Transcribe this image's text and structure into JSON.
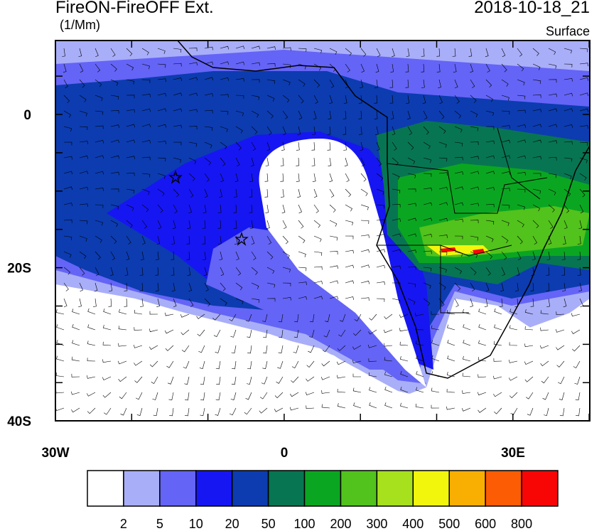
{
  "header": {
    "title": "FireON-FireOFF Ext.",
    "units": "(1/Mm)",
    "datetime": "2018-10-18_21",
    "level": "Surface"
  },
  "axes": {
    "x_labels": [
      "30W",
      "0",
      "30E"
    ],
    "y_labels": [
      "0",
      "20S",
      "40S"
    ]
  },
  "colorbar": {
    "colors": [
      "#ffffff",
      "#a9aef8",
      "#6464f6",
      "#1616f2",
      "#0c3cb0",
      "#077552",
      "#0ba621",
      "#52c21c",
      "#a7e01c",
      "#f2f60c",
      "#f9ae02",
      "#fb5c04",
      "#f80606"
    ],
    "labels": [
      "2",
      "5",
      "10",
      "20",
      "50",
      "100",
      "200",
      "300",
      "400",
      "500",
      "600",
      "800"
    ]
  }
}
